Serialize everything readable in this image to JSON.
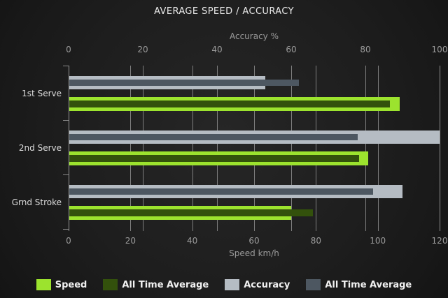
{
  "title": "AVERAGE SPEED / ACCURACY",
  "chart_data": {
    "type": "bar",
    "orientation": "horizontal",
    "grid": true,
    "legend_position": "bottom",
    "categories": [
      "1st Serve",
      "2nd Serve",
      "Grnd Stroke"
    ],
    "axes": {
      "top": {
        "label": "Accuracy %",
        "min": 0,
        "max": 100,
        "ticks": [
          0,
          20,
          40,
          60,
          80,
          100
        ]
      },
      "bottom": {
        "label": "Speed km/h",
        "min": 0,
        "max": 120,
        "ticks": [
          0,
          20,
          40,
          60,
          80,
          100,
          120
        ]
      }
    },
    "series": [
      {
        "name": "Speed",
        "axis": "bottom",
        "role": "current",
        "color": "#9ce32e",
        "values": [
          107,
          97,
          72
        ]
      },
      {
        "name": "All Time Average",
        "axis": "bottom",
        "role": "average",
        "color": "#33510c",
        "values": [
          104,
          94,
          79
        ]
      },
      {
        "name": "Accuracy",
        "axis": "top",
        "role": "current",
        "color": "#b5bcc3",
        "values": [
          53,
          100,
          90
        ]
      },
      {
        "name": "All Time Average",
        "axis": "top",
        "role": "average",
        "color": "#4d5761",
        "values": [
          62,
          78,
          82
        ]
      }
    ],
    "legend": [
      {
        "label": "Speed",
        "color": "#9ce32e"
      },
      {
        "label": "All Time Average",
        "color": "#33510c"
      },
      {
        "label": "Accuracy",
        "color": "#b5bcc3"
      },
      {
        "label": "All Time Average",
        "color": "#4d5761"
      }
    ]
  },
  "colors": {
    "background": "#1e1e1e",
    "gridline": "#969696",
    "axis_text": "#9b9b9b",
    "category_text": "#dcdcdc",
    "title_text": "#e9e9e9",
    "legend_text": "#f1f1f1"
  }
}
